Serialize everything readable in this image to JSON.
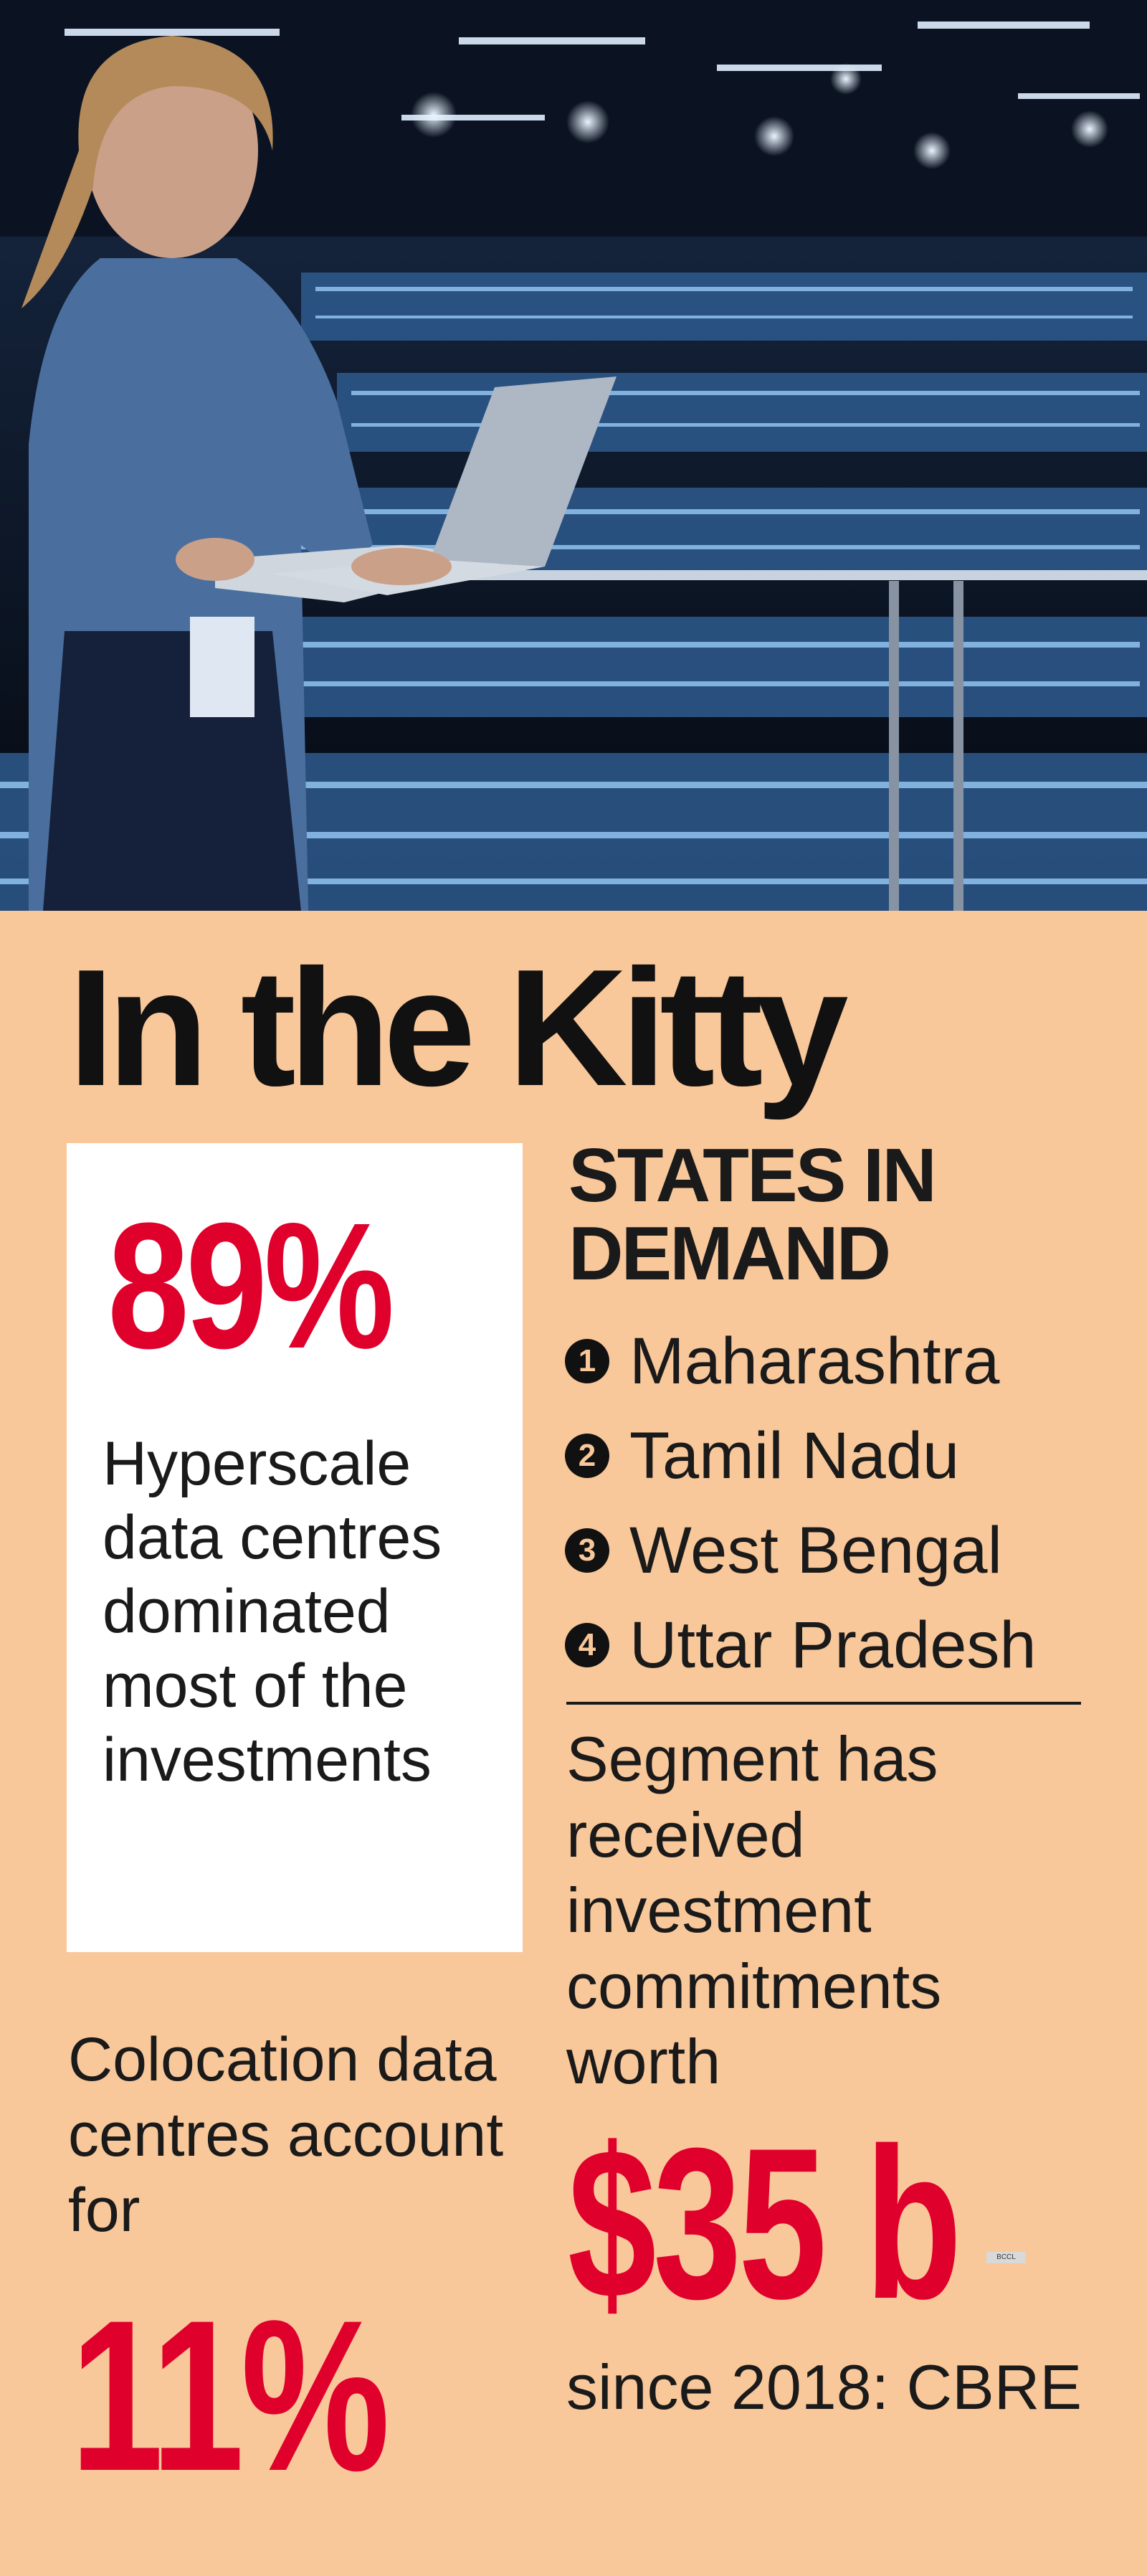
{
  "headline": "In the Kitty",
  "hyperscale": {
    "value": "89%",
    "caption": "Hyperscale data centres dominated most of the investments"
  },
  "states": {
    "heading": "STATES IN DEMAND",
    "items": [
      {
        "rank": "1",
        "name": "Maharashtra"
      },
      {
        "rank": "2",
        "name": "Tamil Nadu"
      },
      {
        "rank": "3",
        "name": "West Bengal"
      },
      {
        "rank": "4",
        "name": "Uttar Pradesh"
      }
    ]
  },
  "investment": {
    "lead_text": "Segment has received investment commitments worth",
    "amount": "$35 b",
    "tail_text": "since 2018: CBRE"
  },
  "colocation": {
    "lead_text": "Colocation data centres account for",
    "value": "11%"
  },
  "credit": "BCCL",
  "colors": {
    "background": "#f8c79a",
    "accent_red": "#e0002c",
    "text": "#1a1a1a"
  }
}
